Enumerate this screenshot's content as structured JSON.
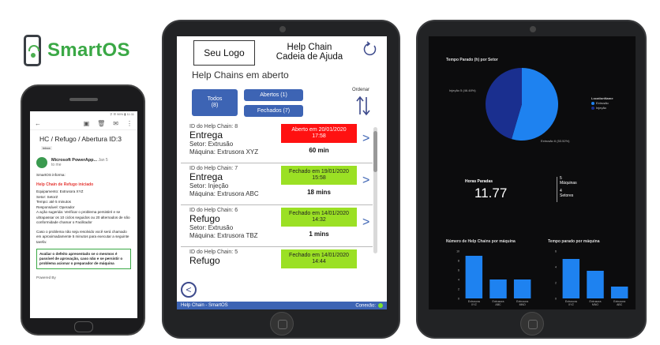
{
  "brand": {
    "name": "SmartOS"
  },
  "phone": {
    "status": "⚲ ☰ 96% ▮ 11:11",
    "subject": "HC / Refugo / Abertura ID:3",
    "inbox_badge": "Inbox",
    "sender": "Microsoft PowerApp...",
    "date": "Jan 5",
    "to": "to me",
    "intro": "SmartOS informa:",
    "alert_title": "Help Chain de Refugo iniciado",
    "lines": [
      "Equipamento: Extrusora XYZ",
      "Setor: SetorZ",
      "Tempo: até 5 minutos",
      "Responsável: Operador",
      "A ação sugerida: Verificar o problema persistiré e se ultrapassar os 10 ciclos seguidos ou 20 alternados de não conformidade chamar o Facilitador"
    ],
    "note": "Caso o problema não seja resolvido você será chamado em aproximadamente 5 minutos para executar a seguinte tarefa:",
    "box_text": "Avaliar o defeito apresentado se o mesmos é passível de aprovação, caso não e se persistir o problema acionar o preparador de máquina",
    "footer": "Powered By"
  },
  "app": {
    "logo": "Seu Logo",
    "title_line1": "Help Chain",
    "title_line2": "Cadeia de Ajuda",
    "list_title": "Help Chains em aberto",
    "btn_todos_line1": "Todos",
    "btn_todos_line2": "(8)",
    "btn_abertos": "Abertos (1)",
    "btn_fechados": "Fechados (7)",
    "ordenar": "Ordenar",
    "items": [
      {
        "id": "ID do Help Chain: 8",
        "type": "Entrega",
        "setor": "Setor: Extrusão",
        "maquina": "Máquina: Extrusora XYZ",
        "status_line1": "Aberto em 20/01/2020",
        "status_line2": "17:58",
        "duration": "60 min"
      },
      {
        "id": "ID do Help Chain: 7",
        "type": "Entrega",
        "setor": "Setor: Injeção",
        "maquina": "Máquina: Extrusora ABC",
        "status_line1": "Fechado em 19/01/2020",
        "status_line2": "15:58",
        "duration": "18 mins"
      },
      {
        "id": "ID do Help Chain: 6",
        "type": "Refugo",
        "setor": "Setor: Extrusão",
        "maquina": "Máquina: Extrusora TBZ",
        "status_line1": "Fechado em 14/01/2020",
        "status_line2": "14:32",
        "duration": "1 mins"
      },
      {
        "id": "ID do Help Chain: 5",
        "type": "Refugo",
        "setor": "",
        "maquina": "",
        "status_line1": "Fechado em 14/01/2020",
        "status_line2": "14:44",
        "duration": ""
      }
    ],
    "footer_left": "Help Chain - SmartOS",
    "footer_right": "Conexão:",
    "colors": {
      "primary": "#3d64b4",
      "open": "#ff1111",
      "closed": "#9be024"
    }
  },
  "dashboard": {
    "pie_title": "Tempo Parado (h) por Setor",
    "pie_label_a": "Injeção 5 (46.48%)",
    "pie_label_b": "Extrusão 6 (53.52%)",
    "legend_title": "LocationName",
    "legend_a": "Extrusão",
    "legend_b": "Injeção",
    "kpi_label": "Horas Paradas",
    "kpi_value": "11.77",
    "kpi_maq_value": "5",
    "kpi_maq_label": "Máquinas",
    "kpi_set_value": "4",
    "kpi_set_label": "Setores",
    "bar1_title": "Número de Help Chains por máquina",
    "bar2_title": "Tempo parado por máquina"
  },
  "chart_data": [
    {
      "type": "pie",
      "title": "Tempo Parado (h) por Setor",
      "categories": [
        "Extrusão",
        "Injeção"
      ],
      "values": [
        6,
        5
      ],
      "percent": [
        53.52,
        46.48
      ],
      "legend": "right",
      "colors": [
        "#1e82f0",
        "#1a2f8f"
      ]
    },
    {
      "type": "bar",
      "title": "Número de Help Chains por máquina",
      "categories": [
        "Extrusora XYZ",
        "Extrusora ABC",
        "Extrusora MNO"
      ],
      "values": [
        9,
        4,
        4
      ],
      "ylim": [
        0,
        10
      ],
      "ytick_labels": [
        "0",
        "2",
        "4",
        "6",
        "8",
        "10"
      ],
      "color": "#1e82f0"
    },
    {
      "type": "bar",
      "title": "Tempo parado por máquina",
      "categories": [
        "Extrusora XYZ",
        "Extrusora MNO",
        "Extrusora ABC"
      ],
      "values": [
        5,
        3.5,
        1.5
      ],
      "ylim": [
        0,
        6
      ],
      "ytick_labels": [
        "0",
        "2",
        "4",
        "6"
      ],
      "color": "#1e82f0"
    }
  ]
}
